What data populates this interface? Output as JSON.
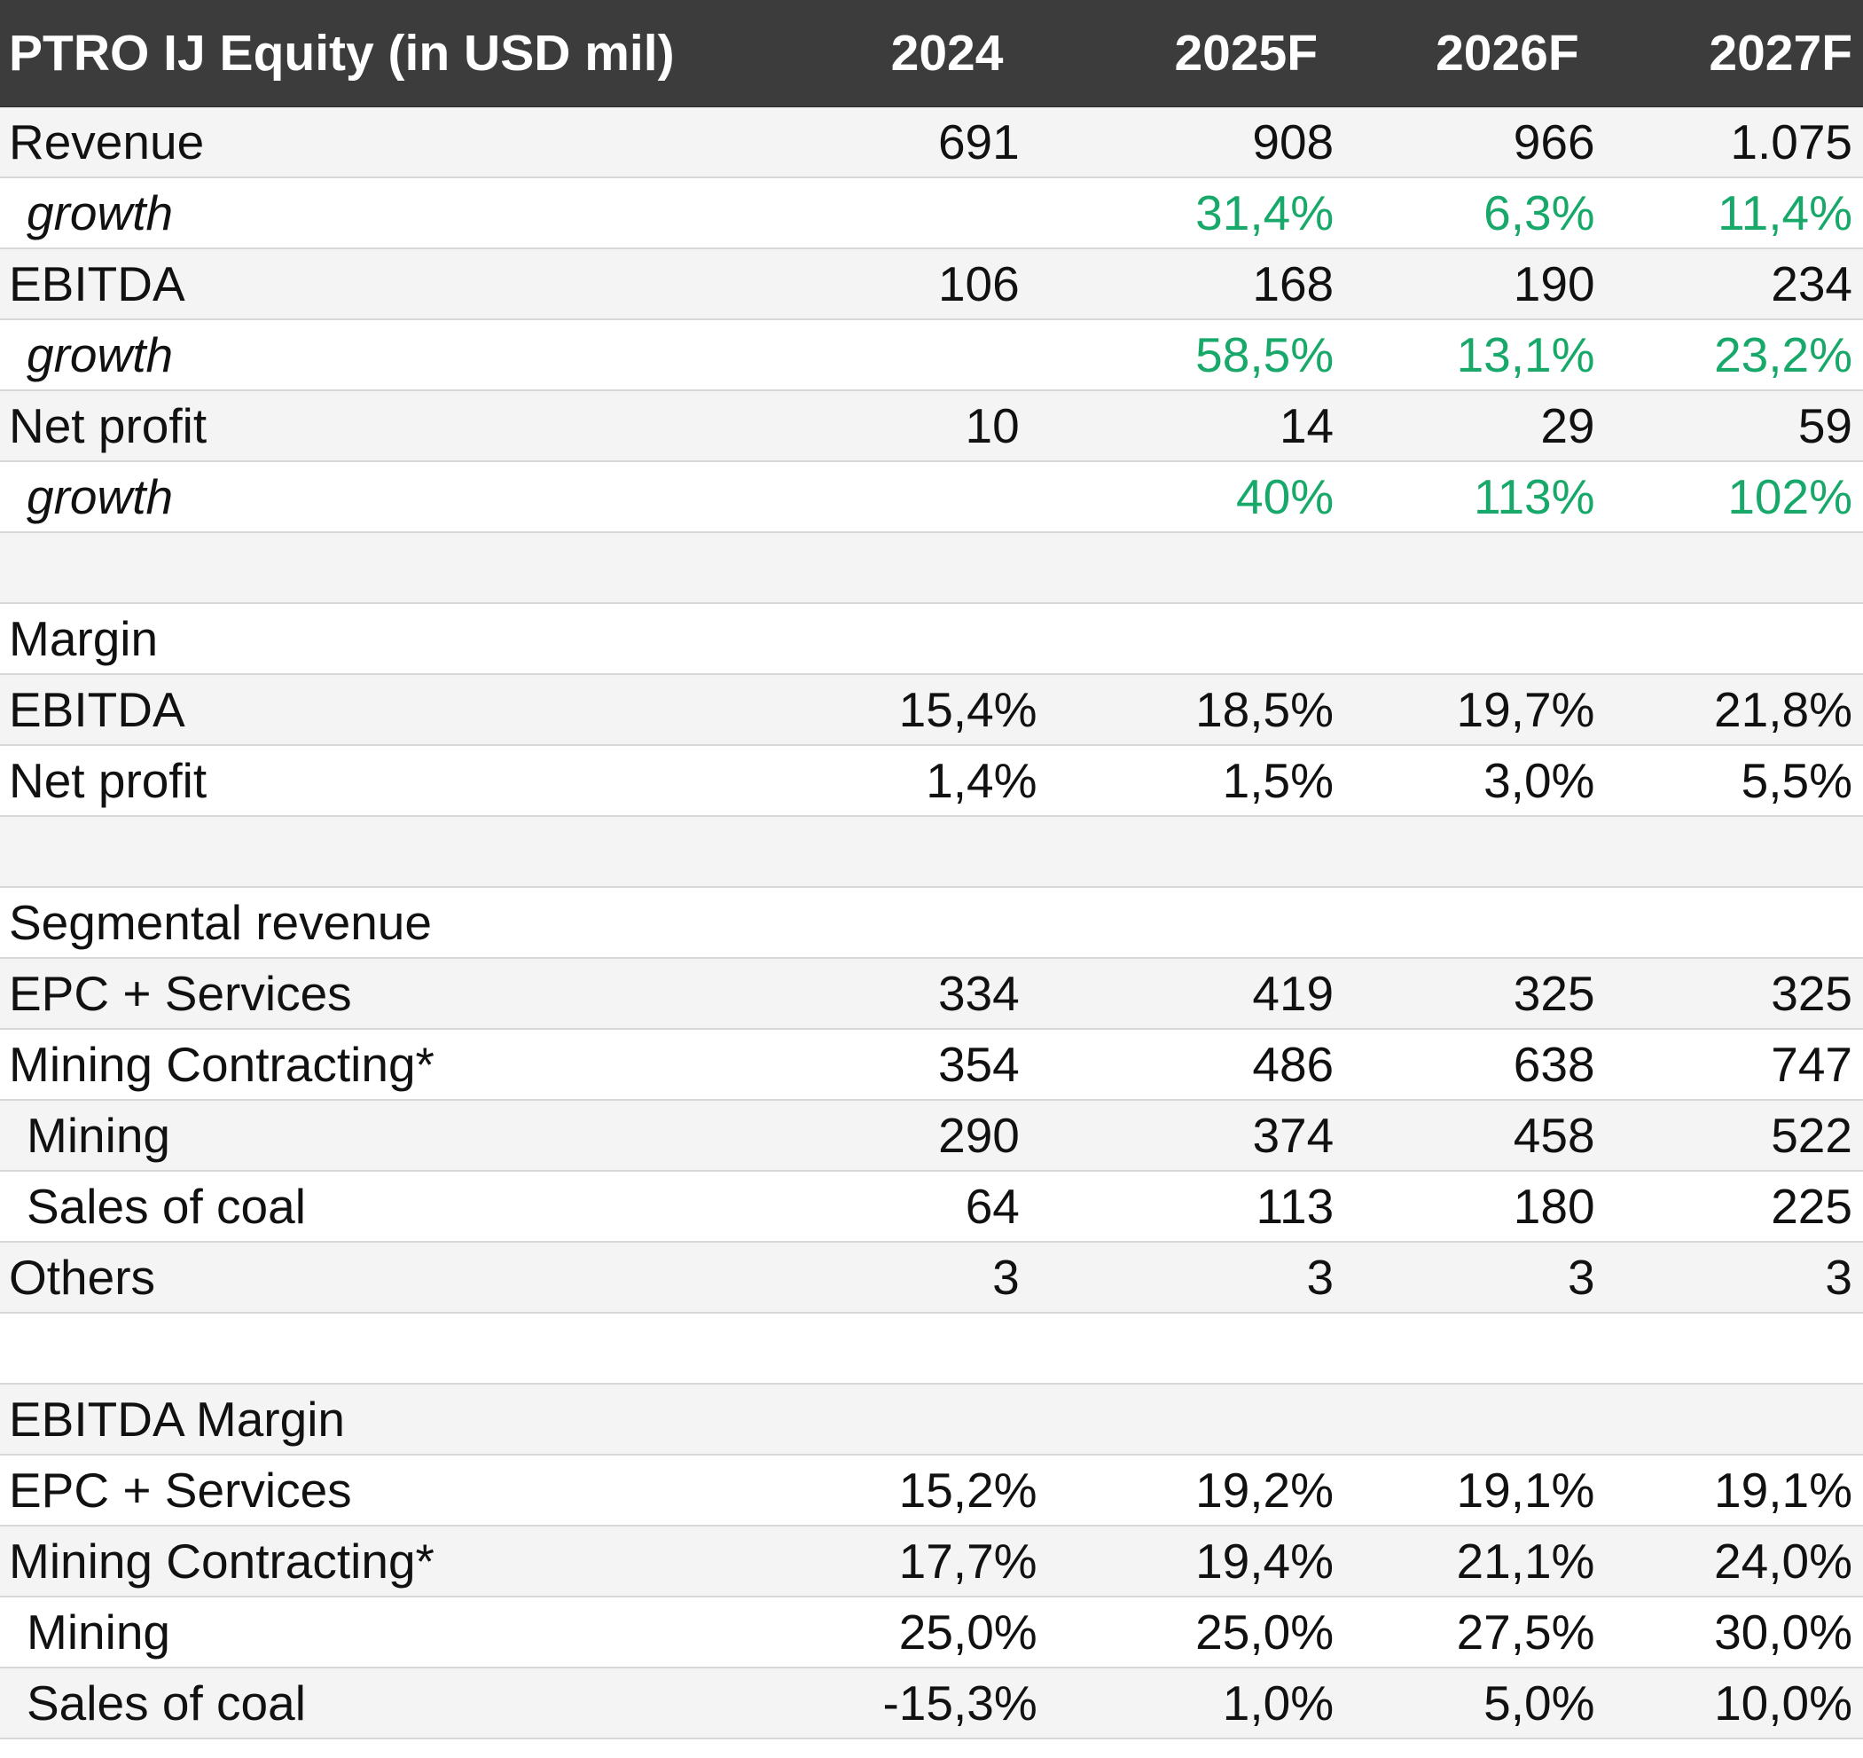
{
  "header": {
    "title": "PTRO IJ Equity (in USD mil)",
    "years": [
      "2024",
      "2025F",
      "2026F",
      "2027F"
    ]
  },
  "rows": [
    {
      "label": "Revenue",
      "values": [
        "691",
        "908",
        "966",
        "1.075"
      ]
    },
    {
      "label": "growth",
      "values": [
        "",
        "31,4%",
        "6,3%",
        "11,4%"
      ]
    },
    {
      "label": "EBITDA",
      "values": [
        "106",
        "168",
        "190",
        "234"
      ]
    },
    {
      "label": "growth",
      "values": [
        "",
        "58,5%",
        "13,1%",
        "23,2%"
      ]
    },
    {
      "label": "Net profit",
      "values": [
        "10",
        "14",
        "29",
        "59"
      ]
    },
    {
      "label": "growth",
      "values": [
        "",
        "40%",
        "113%",
        "102%"
      ]
    },
    {
      "label": "",
      "values": [
        "",
        "",
        "",
        ""
      ]
    },
    {
      "label": "Margin",
      "values": [
        "",
        "",
        "",
        ""
      ]
    },
    {
      "label": "EBITDA",
      "values": [
        "15,4%",
        "18,5%",
        "19,7%",
        "21,8%"
      ]
    },
    {
      "label": "Net profit",
      "values": [
        "1,4%",
        "1,5%",
        "3,0%",
        "5,5%"
      ]
    },
    {
      "label": "",
      "values": [
        "",
        "",
        "",
        ""
      ]
    },
    {
      "label": "Segmental revenue",
      "values": [
        "",
        "",
        "",
        ""
      ]
    },
    {
      "label": "EPC + Services",
      "values": [
        "334",
        "419",
        "325",
        "325"
      ]
    },
    {
      "label": "Mining Contracting*",
      "values": [
        "354",
        "486",
        "638",
        "747"
      ]
    },
    {
      "label": "Mining",
      "values": [
        "290",
        "374",
        "458",
        "522"
      ]
    },
    {
      "label": "Sales of coal",
      "values": [
        "64",
        "113",
        "180",
        "225"
      ]
    },
    {
      "label": "Others",
      "values": [
        "3",
        "3",
        "3",
        "3"
      ]
    },
    {
      "label": "",
      "values": [
        "",
        "",
        "",
        ""
      ]
    },
    {
      "label": "EBITDA Margin",
      "values": [
        "",
        "",
        "",
        ""
      ]
    },
    {
      "label": "EPC + Services",
      "values": [
        "15,2%",
        "19,2%",
        "19,1%",
        "19,1%"
      ]
    },
    {
      "label": "Mining Contracting*",
      "values": [
        "17,7%",
        "19,4%",
        "21,1%",
        "24,0%"
      ]
    },
    {
      "label": "Mining",
      "values": [
        "25,0%",
        "25,0%",
        "27,5%",
        "30,0%"
      ]
    },
    {
      "label": "Sales of coal",
      "values": [
        "-15,3%",
        "1,0%",
        "5,0%",
        "10,0%"
      ]
    }
  ],
  "colors": {
    "header_bg": "#3c3c3c",
    "growth_green": "#17a86a",
    "band_grey": "#f4f4f4"
  }
}
